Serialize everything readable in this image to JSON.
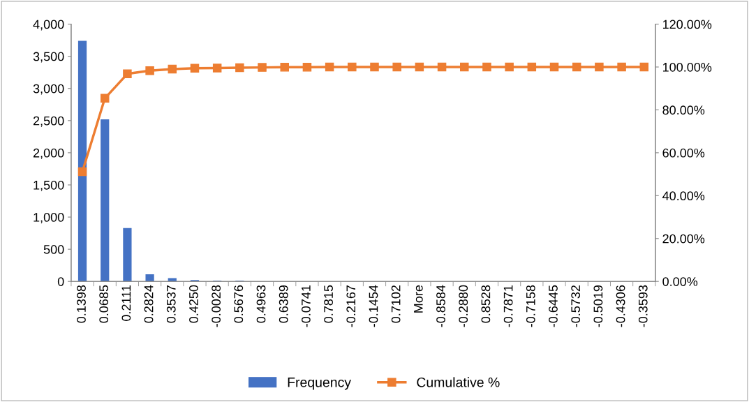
{
  "chart_data": {
    "type": "bar",
    "categories": [
      "0.1398",
      "0.0685",
      "0.2111",
      "0.2824",
      "0.3537",
      "0.4250",
      "-0.0028",
      "0.5676",
      "0.4963",
      "0.6389",
      "-0.0741",
      "0.7815",
      "-0.2167",
      "-0.1454",
      "0.7102",
      "More",
      "-0.8584",
      "-0.2880",
      "0.8528",
      "-0.7871",
      "-0.7158",
      "-0.6445",
      "-0.5732",
      "-0.5019",
      "-0.4306",
      "-0.3593"
    ],
    "series": [
      {
        "name": "Frequency",
        "color": "#4472c4",
        "values": [
          3740,
          2520,
          830,
          110,
          50,
          20,
          10,
          10,
          0,
          0,
          0,
          0,
          0,
          0,
          0,
          0,
          0,
          0,
          0,
          0,
          0,
          0,
          0,
          0,
          0,
          0
        ]
      },
      {
        "name": "Cumulative %",
        "type": "line",
        "axis": "y2",
        "color": "#ed7d31",
        "marker": "square",
        "values": [
          51.2,
          85.4,
          96.8,
          98.3,
          99.0,
          99.4,
          99.5,
          99.7,
          99.8,
          99.9,
          99.9,
          100,
          100,
          100,
          100,
          100,
          100,
          100,
          100,
          100,
          100,
          100,
          100,
          100,
          100,
          100
        ]
      }
    ],
    "ylim": [
      0,
      4000
    ],
    "yticks": [
      {
        "value": 0,
        "label": "0"
      },
      {
        "value": 500,
        "label": "500"
      },
      {
        "value": 1000,
        "label": "1,000"
      },
      {
        "value": 1500,
        "label": "1,500"
      },
      {
        "value": 2000,
        "label": "2,000"
      },
      {
        "value": 2500,
        "label": "2,500"
      },
      {
        "value": 3000,
        "label": "3,000"
      },
      {
        "value": 3500,
        "label": "3,500"
      },
      {
        "value": 4000,
        "label": "4,000"
      }
    ],
    "y2lim": [
      0,
      120
    ],
    "y2ticks": [
      {
        "value": 0,
        "label": "0.00%"
      },
      {
        "value": 20,
        "label": "20.00%"
      },
      {
        "value": 40,
        "label": "40.00%"
      },
      {
        "value": 60,
        "label": "60.00%"
      },
      {
        "value": 80,
        "label": "80.00%"
      },
      {
        "value": 100,
        "label": "100.00%"
      },
      {
        "value": 120,
        "label": "120.00%"
      }
    ],
    "grid": false,
    "legend": "bottom"
  }
}
